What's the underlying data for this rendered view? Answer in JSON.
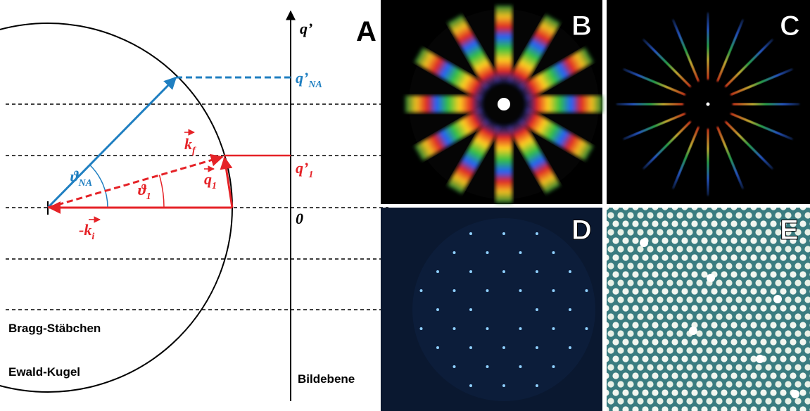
{
  "panels": [
    "A",
    "B",
    "C",
    "D",
    "E"
  ],
  "diagram": {
    "axis_label": "q’",
    "q_na": {
      "base": "q’",
      "sub": "NA"
    },
    "q_1": {
      "base": "q’",
      "sub": "1"
    },
    "zero": "0",
    "k_f": {
      "base": "k",
      "sub": "f"
    },
    "q1_vec": {
      "base": "q",
      "sub": "1"
    },
    "theta_na": {
      "base": "ϑ",
      "sub": "NA"
    },
    "theta_1": {
      "base": "ϑ",
      "sub": "1"
    },
    "k_i": {
      "base": "-k",
      "sub": "i"
    },
    "bragg": "Bragg-Stäbchen",
    "ewald": "Ewald-Kugel",
    "image_plane": "Bildebene"
  }
}
